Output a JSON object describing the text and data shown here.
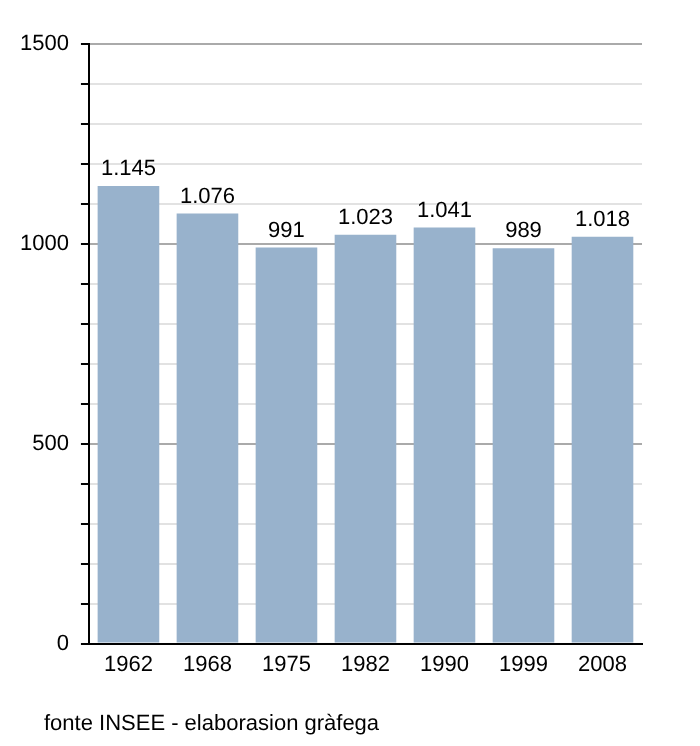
{
  "chart_data": {
    "type": "bar",
    "categories": [
      "1962",
      "1968",
      "1975",
      "1982",
      "1990",
      "1999",
      "2008"
    ],
    "values": [
      1145,
      1076,
      991,
      1023,
      1041,
      989,
      1018
    ],
    "value_labels": [
      "1.145",
      "1.076",
      "991",
      "1.023",
      "1.041",
      "989",
      "1.018"
    ],
    "color": "#98b2cc",
    "ylim": [
      0,
      1500
    ],
    "yticks": [
      0,
      {
        "value": 100,
        "label": null
      },
      {
        "value": 200,
        "label": null
      },
      {
        "value": 300,
        "label": null
      },
      {
        "value": 400,
        "label": null
      },
      500,
      {
        "value": 600,
        "label": null
      },
      {
        "value": 700,
        "label": null
      },
      {
        "value": 800,
        "label": null
      },
      {
        "value": 900,
        "label": null
      },
      1000,
      {
        "value": 1100,
        "label": null
      },
      {
        "value": 1200,
        "label": null
      },
      {
        "value": 1300,
        "label": null
      },
      {
        "value": 1400,
        "label": null
      },
      1500
    ],
    "grid": "y",
    "legend": false,
    "annotations": [
      "fonte INSEE - elaborasion gràfega"
    ]
  }
}
